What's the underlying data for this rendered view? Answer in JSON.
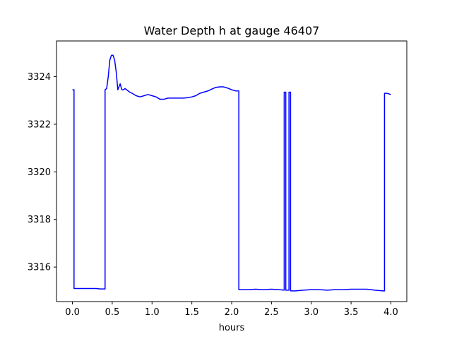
{
  "chart_data": {
    "type": "line",
    "title": "Water Depth h at gauge 46407",
    "xlabel": "hours",
    "ylabel": "",
    "xlim": [
      -0.2,
      4.2
    ],
    "ylim": [
      3314.55,
      3325.5
    ],
    "xticks": [
      0.0,
      0.5,
      1.0,
      1.5,
      2.0,
      2.5,
      3.0,
      3.5,
      4.0
    ],
    "xtick_labels": [
      "0.0",
      "0.5",
      "1.0",
      "1.5",
      "2.0",
      "2.5",
      "3.0",
      "3.5",
      "4.0"
    ],
    "yticks": [
      3316,
      3318,
      3320,
      3322,
      3324
    ],
    "ytick_labels": [
      "3316",
      "3318",
      "3320",
      "3322",
      "3324"
    ],
    "grid": false,
    "series": [
      {
        "color": "#0000ff",
        "x": [
          0.0,
          0.02,
          0.02,
          0.1,
          0.2,
          0.3,
          0.35,
          0.41,
          0.41,
          0.43,
          0.45,
          0.47,
          0.49,
          0.51,
          0.53,
          0.55,
          0.57,
          0.6,
          0.62,
          0.64,
          0.66,
          0.68,
          0.7,
          0.72,
          0.75,
          0.8,
          0.85,
          0.9,
          0.95,
          1.0,
          1.05,
          1.1,
          1.15,
          1.2,
          1.3,
          1.4,
          1.45,
          1.5,
          1.55,
          1.6,
          1.7,
          1.8,
          1.85,
          1.9,
          1.95,
          2.0,
          2.05,
          2.09,
          2.09,
          2.15,
          2.2,
          2.3,
          2.4,
          2.5,
          2.6,
          2.66,
          2.66,
          2.68,
          2.68,
          2.72,
          2.72,
          2.74,
          2.74,
          2.8,
          2.9,
          3.0,
          3.1,
          3.2,
          3.3,
          3.4,
          3.5,
          3.6,
          3.7,
          3.8,
          3.9,
          3.92,
          3.92,
          3.95,
          4.0
        ],
        "y": [
          3323.45,
          3323.45,
          3315.1,
          3315.1,
          3315.1,
          3315.1,
          3315.08,
          3315.08,
          3323.45,
          3323.5,
          3324.0,
          3324.7,
          3324.9,
          3324.9,
          3324.7,
          3324.2,
          3323.45,
          3323.7,
          3323.45,
          3323.45,
          3323.5,
          3323.45,
          3323.4,
          3323.35,
          3323.3,
          3323.2,
          3323.15,
          3323.2,
          3323.25,
          3323.2,
          3323.15,
          3323.05,
          3323.05,
          3323.1,
          3323.1,
          3323.1,
          3323.12,
          3323.15,
          3323.2,
          3323.3,
          3323.4,
          3323.55,
          3323.57,
          3323.57,
          3323.52,
          3323.45,
          3323.4,
          3323.4,
          3315.05,
          3315.05,
          3315.05,
          3315.07,
          3315.05,
          3315.07,
          3315.05,
          3315.03,
          3323.35,
          3323.35,
          3315.03,
          3315.03,
          3323.35,
          3323.35,
          3315.0,
          3315.0,
          3315.03,
          3315.05,
          3315.05,
          3315.03,
          3315.05,
          3315.05,
          3315.07,
          3315.07,
          3315.07,
          3315.03,
          3315.0,
          3315.0,
          3323.3,
          3323.3,
          3323.25
        ]
      }
    ]
  }
}
